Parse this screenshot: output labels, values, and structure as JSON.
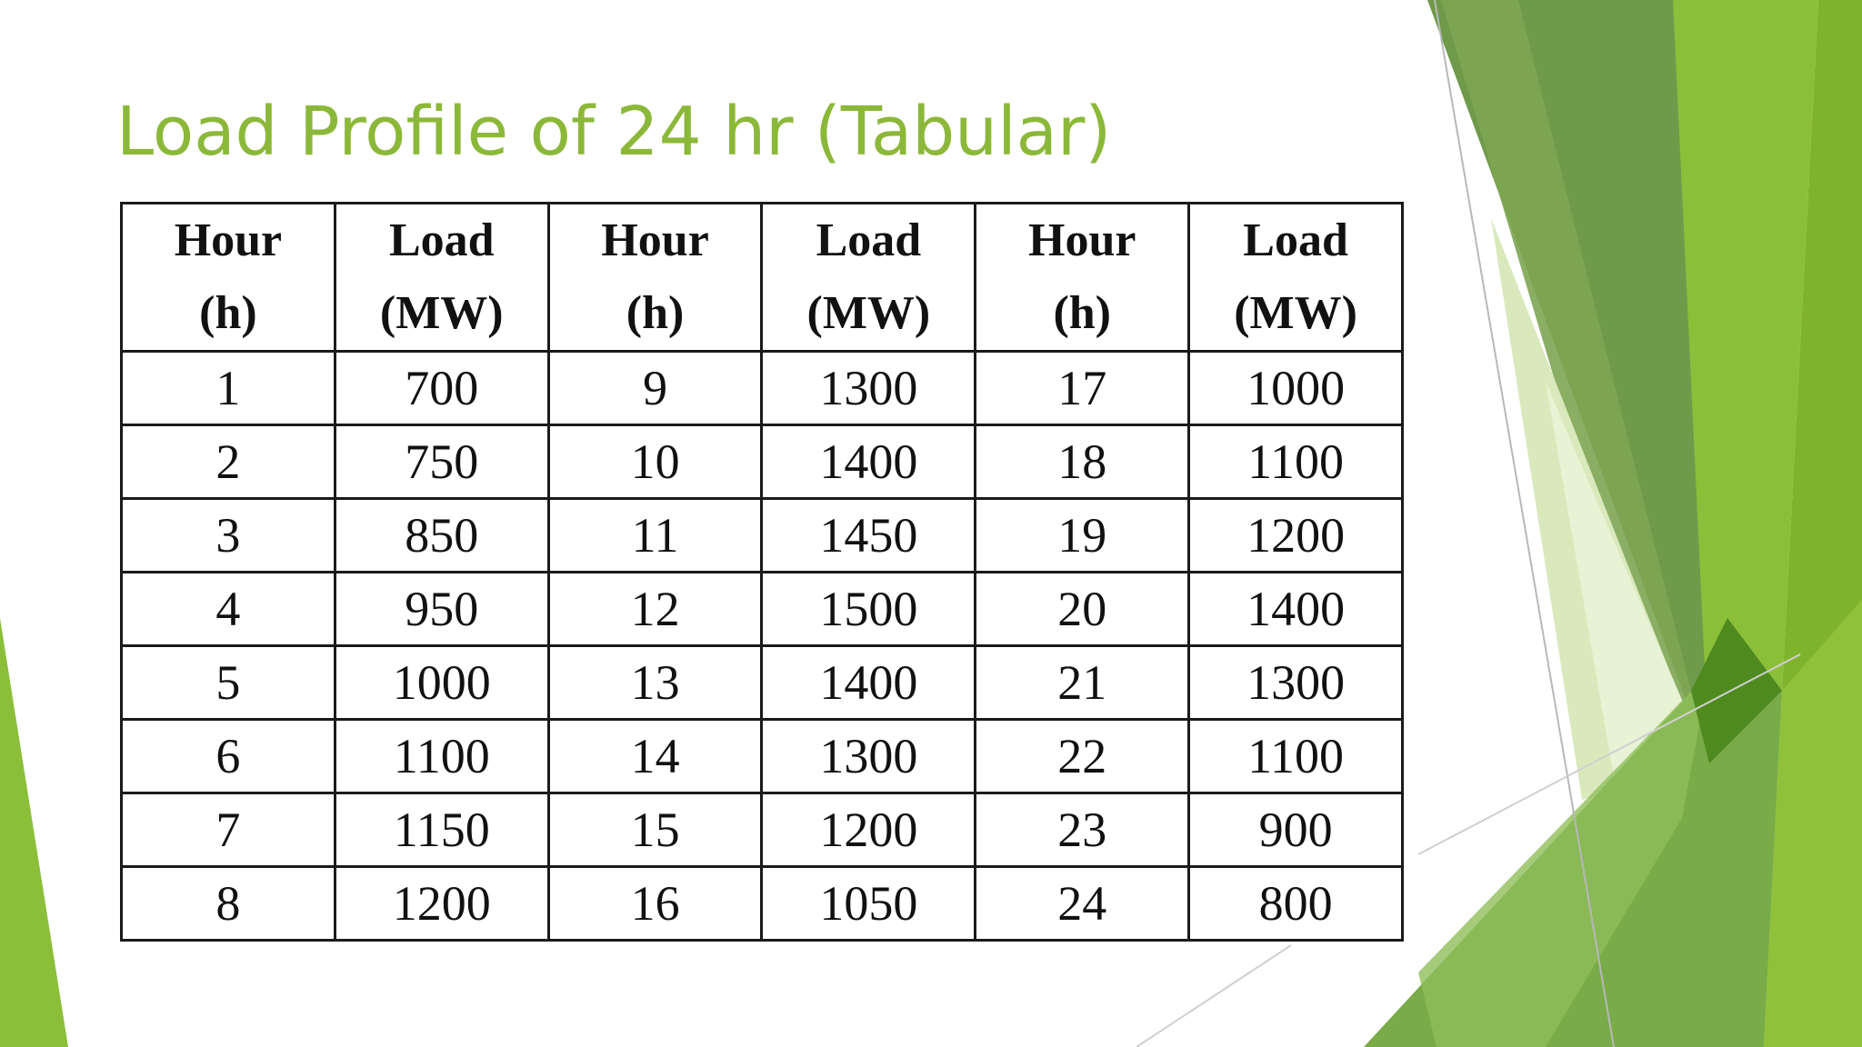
{
  "slide": {
    "title": "Load Profile of 24 hr (Tabular)"
  },
  "table": {
    "headers": [
      {
        "name": "Hour",
        "unit": "(h)"
      },
      {
        "name": "Load",
        "unit": "(MW)"
      },
      {
        "name": "Hour",
        "unit": "(h)"
      },
      {
        "name": "Load",
        "unit": "(MW)"
      },
      {
        "name": "Hour",
        "unit": "(h)"
      },
      {
        "name": "Load",
        "unit": "(MW)"
      }
    ],
    "rows": [
      [
        "1",
        "700",
        "9",
        "1300",
        "17",
        "1000"
      ],
      [
        "2",
        "750",
        "10",
        "1400",
        "18",
        "1100"
      ],
      [
        "3",
        "850",
        "11",
        "1450",
        "19",
        "1200"
      ],
      [
        "4",
        "950",
        "12",
        "1500",
        "20",
        "1400"
      ],
      [
        "5",
        "1000",
        "13",
        "1400",
        "21",
        "1300"
      ],
      [
        "6",
        "1100",
        "14",
        "1300",
        "22",
        "1100"
      ],
      [
        "7",
        "1150",
        "15",
        "1200",
        "23",
        "900"
      ],
      [
        "8",
        "1200",
        "16",
        "1050",
        "24",
        "800"
      ]
    ]
  },
  "theme": {
    "accent": "#8cb83a",
    "dark_green": "#5a8f2c",
    "light_green": "#c5de96"
  }
}
